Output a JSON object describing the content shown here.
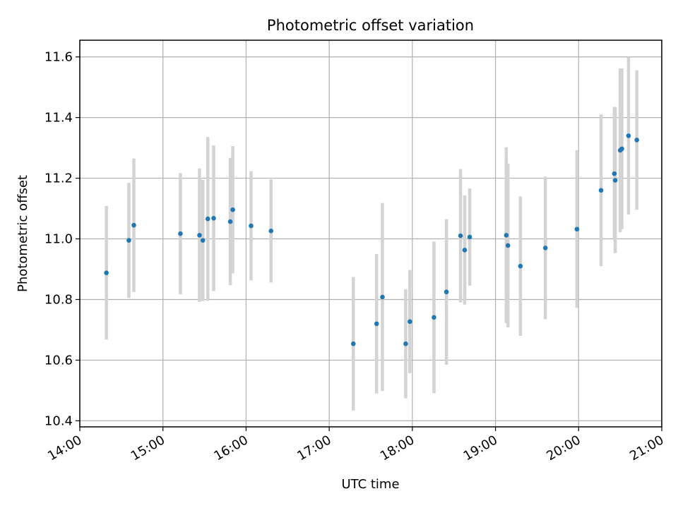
{
  "chart_data": {
    "type": "scatter",
    "title": "Photometric offset variation",
    "xlabel": "UTC time",
    "ylabel": "Photometric offset",
    "xlim_hours": [
      14.0,
      21.0
    ],
    "ylim": [
      10.38,
      11.655
    ],
    "grid": true,
    "x_ticks": [
      {
        "value": 14,
        "label": "14:00"
      },
      {
        "value": 15,
        "label": "15:00"
      },
      {
        "value": 16,
        "label": "16:00"
      },
      {
        "value": 17,
        "label": "17:00"
      },
      {
        "value": 18,
        "label": "18:00"
      },
      {
        "value": 19,
        "label": "19:00"
      },
      {
        "value": 20,
        "label": "20:00"
      },
      {
        "value": 21,
        "label": "21:00"
      }
    ],
    "y_ticks": [
      {
        "value": 10.4,
        "label": "10.4"
      },
      {
        "value": 10.6,
        "label": "10.6"
      },
      {
        "value": 10.8,
        "label": "10.8"
      },
      {
        "value": 11.0,
        "label": "11.0"
      },
      {
        "value": 11.2,
        "label": "11.2"
      },
      {
        "value": 11.4,
        "label": "11.4"
      },
      {
        "value": 11.6,
        "label": "11.6"
      }
    ],
    "point_color": "#1f77b4",
    "errorbar_color": "#d3d3d3",
    "points": [
      {
        "t": 14.32,
        "y": 10.888,
        "err": 0.22
      },
      {
        "t": 14.59,
        "y": 10.995,
        "err": 0.19
      },
      {
        "t": 14.65,
        "y": 11.045,
        "err": 0.22
      },
      {
        "t": 15.21,
        "y": 11.017,
        "err": 0.2
      },
      {
        "t": 15.44,
        "y": 11.012,
        "err": 0.22
      },
      {
        "t": 15.48,
        "y": 10.995,
        "err": 0.2
      },
      {
        "t": 15.54,
        "y": 11.066,
        "err": 0.27
      },
      {
        "t": 15.61,
        "y": 11.068,
        "err": 0.24
      },
      {
        "t": 15.81,
        "y": 11.057,
        "err": 0.21
      },
      {
        "t": 15.84,
        "y": 11.096,
        "err": 0.21
      },
      {
        "t": 16.06,
        "y": 11.043,
        "err": 0.18
      },
      {
        "t": 16.3,
        "y": 11.026,
        "err": 0.17
      },
      {
        "t": 17.29,
        "y": 10.654,
        "err": 0.22
      },
      {
        "t": 17.57,
        "y": 10.72,
        "err": 0.23
      },
      {
        "t": 17.64,
        "y": 10.808,
        "err": 0.31
      },
      {
        "t": 17.92,
        "y": 10.654,
        "err": 0.18
      },
      {
        "t": 17.97,
        "y": 10.727,
        "err": 0.17
      },
      {
        "t": 18.26,
        "y": 10.741,
        "err": 0.25
      },
      {
        "t": 18.41,
        "y": 10.825,
        "err": 0.24
      },
      {
        "t": 18.58,
        "y": 11.01,
        "err": 0.22
      },
      {
        "t": 18.63,
        "y": 10.963,
        "err": 0.18
      },
      {
        "t": 18.69,
        "y": 11.006,
        "err": 0.16
      },
      {
        "t": 19.13,
        "y": 11.012,
        "err": 0.29
      },
      {
        "t": 19.15,
        "y": 10.978,
        "err": 0.27
      },
      {
        "t": 19.3,
        "y": 10.91,
        "err": 0.23
      },
      {
        "t": 19.6,
        "y": 10.97,
        "err": 0.235
      },
      {
        "t": 19.98,
        "y": 11.032,
        "err": 0.26
      },
      {
        "t": 20.27,
        "y": 11.16,
        "err": 0.25
      },
      {
        "t": 20.43,
        "y": 11.215,
        "err": 0.22
      },
      {
        "t": 20.44,
        "y": 11.193,
        "err": 0.24
      },
      {
        "t": 20.5,
        "y": 11.292,
        "err": 0.27
      },
      {
        "t": 20.52,
        "y": 11.297,
        "err": 0.265
      },
      {
        "t": 20.6,
        "y": 11.34,
        "err": 0.26
      },
      {
        "t": 20.7,
        "y": 11.326,
        "err": 0.23
      }
    ]
  }
}
